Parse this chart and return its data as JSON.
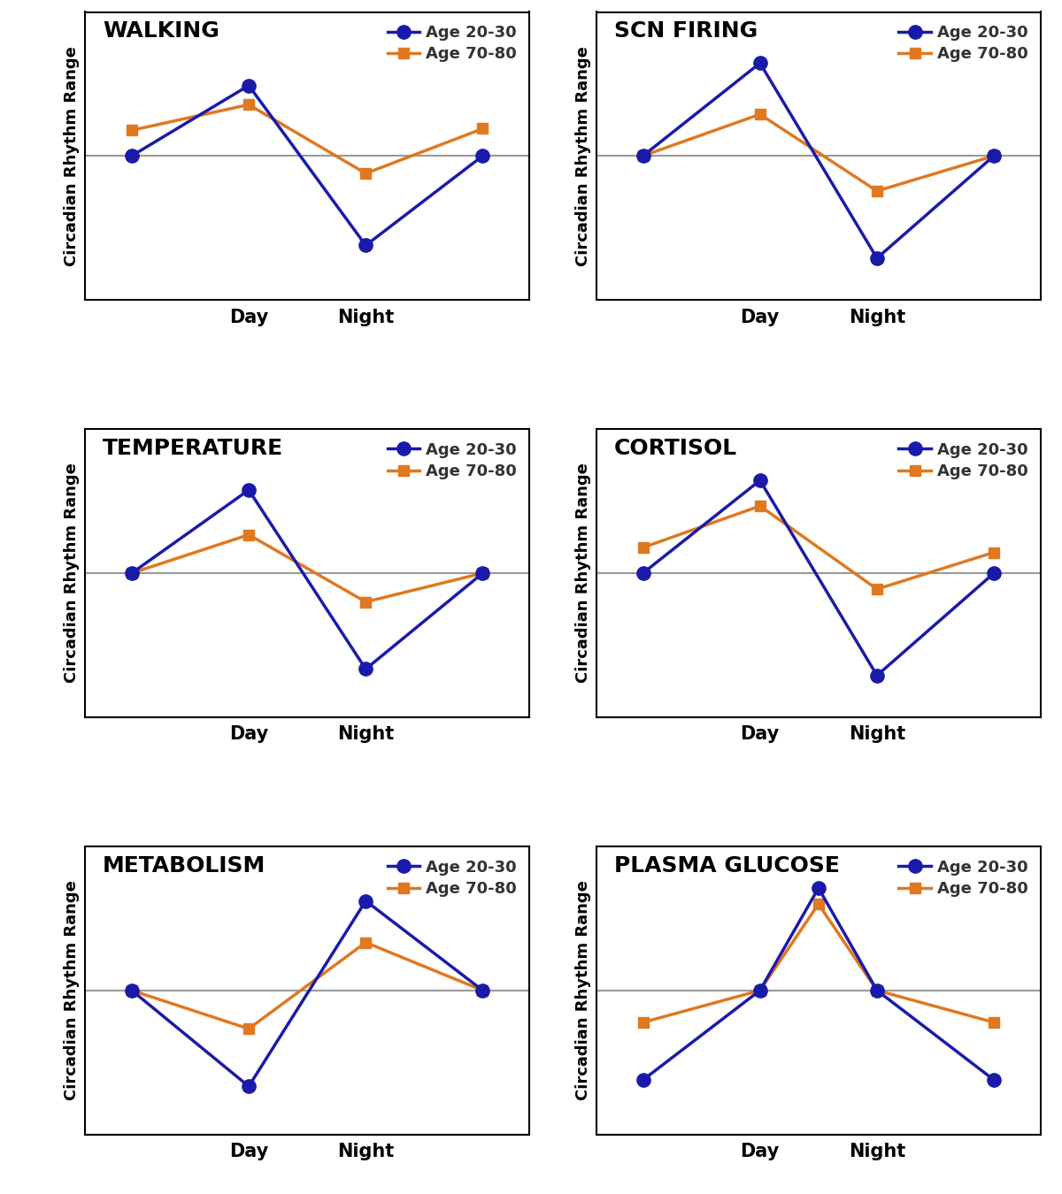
{
  "panels": [
    {
      "title": "WALKING",
      "x": [
        0,
        1,
        2,
        3
      ],
      "young": [
        0,
        2.2,
        -2.8,
        0
      ],
      "old": [
        0.8,
        1.6,
        -0.55,
        0.85
      ],
      "xtick_positions": [
        1,
        2
      ],
      "xtick_labels": [
        "Day",
        "Night"
      ]
    },
    {
      "title": "SCN FIRING",
      "x": [
        0,
        1,
        2,
        3
      ],
      "young": [
        0,
        2.9,
        -3.2,
        0
      ],
      "old": [
        0,
        1.3,
        -1.1,
        0
      ],
      "xtick_positions": [
        1,
        2
      ],
      "xtick_labels": [
        "Day",
        "Night"
      ]
    },
    {
      "title": "TEMPERATURE",
      "x": [
        0,
        1,
        2,
        3
      ],
      "young": [
        0,
        2.6,
        -3.0,
        0
      ],
      "old": [
        0,
        1.2,
        -0.9,
        0
      ],
      "xtick_positions": [
        1,
        2
      ],
      "xtick_labels": [
        "Day",
        "Night"
      ]
    },
    {
      "title": "CORTISOL",
      "x": [
        0,
        1,
        2,
        3
      ],
      "young": [
        0,
        2.9,
        -3.2,
        0
      ],
      "old": [
        0.8,
        2.1,
        -0.5,
        0.65
      ],
      "xtick_positions": [
        1,
        2
      ],
      "xtick_labels": [
        "Day",
        "Night"
      ]
    },
    {
      "title": "METABOLISM",
      "x": [
        0,
        1,
        2,
        3
      ],
      "young": [
        0,
        -3.0,
        2.8,
        0
      ],
      "old": [
        0,
        -1.2,
        1.5,
        0
      ],
      "xtick_positions": [
        1,
        2
      ],
      "xtick_labels": [
        "Day",
        "Night"
      ]
    },
    {
      "title": "PLASMA GLUCOSE",
      "x": [
        0,
        1,
        2,
        3
      ],
      "young": [
        -2.8,
        0,
        0,
        -2.8
      ],
      "old": [
        -1.0,
        0,
        0,
        -1.0
      ],
      "peak_x": 1.5,
      "young_peak": 3.2,
      "old_peak": 2.7,
      "xtick_positions": [
        1,
        2
      ],
      "xtick_labels": [
        "Day",
        "Night"
      ]
    }
  ],
  "young_color": "#1a1aaa",
  "old_color": "#e07820",
  "young_label": "Age 20-30",
  "old_label": "Age 70-80",
  "ylabel": "Circadian Rhythm Range",
  "ylim": [
    -4.5,
    4.5
  ],
  "hline_y": 0,
  "hline_color": "#999999",
  "hline_lw": 1.5,
  "line_lw": 2.5,
  "marker_size_young": 11,
  "marker_size_old": 9,
  "title_fontsize": 18,
  "label_fontsize": 13,
  "tick_fontsize": 15,
  "legend_fontsize": 13
}
